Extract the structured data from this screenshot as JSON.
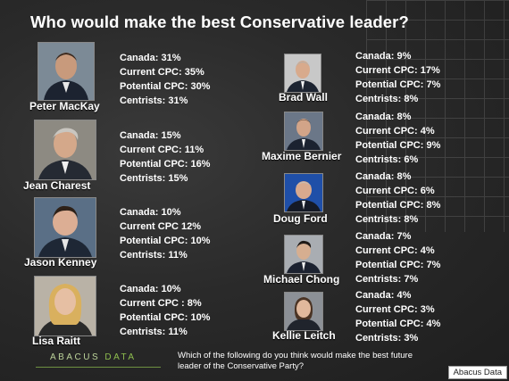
{
  "title": "Who would make the best Conservative leader?",
  "candidates": [
    {
      "name": "Peter MacKay",
      "lines": [
        "Canada: 31%",
        "Current CPC: 35%",
        "Potential CPC: 30%",
        "Centrists:  31%"
      ]
    },
    {
      "name": "Jean Charest",
      "lines": [
        "Canada: 15%",
        "Current CPC: 11%",
        "Potential CPC: 16%",
        "Centrists: 15%"
      ]
    },
    {
      "name": "Jason Kenney",
      "lines": [
        "Canada: 10%",
        "Current CPC 12%",
        "Potential CPC: 10%",
        "Centrists: 11%"
      ]
    },
    {
      "name": "Lisa Raitt",
      "lines": [
        "Canada: 10%",
        "Current CPC : 8%",
        "Potential CPC: 10%",
        "Centrists: 11%"
      ]
    },
    {
      "name": "Brad Wall",
      "lines": [
        "Canada: 9%",
        "Current CPC: 17%",
        "Potential CPC: 7%",
        "Centrists:  8%"
      ]
    },
    {
      "name": "Maxime Bernier",
      "lines": [
        "Canada: 8%",
        "Current CPC: 4%",
        "Potential CPC: 9%",
        "Centrists: 6%"
      ]
    },
    {
      "name": "Doug Ford",
      "lines": [
        "Canada: 8%",
        "Current CPC: 6%",
        "Potential CPC: 8%",
        "Centrists: 8%"
      ]
    },
    {
      "name": "Michael Chong",
      "lines": [
        "Canada: 7%",
        "Current CPC: 4%",
        "Potential CPC: 7%",
        "Centrists: 7%"
      ]
    },
    {
      "name": "Kellie Leitch",
      "lines": [
        "Canada: 4%",
        "Current CPC:  3%",
        "Potential CPC: 4%",
        "Centrists: 3%"
      ]
    }
  ],
  "footer": {
    "logo_part1": "ABACUS",
    "logo_part2": "DATA",
    "question": "Which of the following do you think would make the best future leader of the Conservative Party?",
    "credit": "Abacus Data"
  },
  "colors": {
    "background": "#2a2a2a",
    "text": "#ffffff",
    "logo_green": "#8fbf4f"
  }
}
